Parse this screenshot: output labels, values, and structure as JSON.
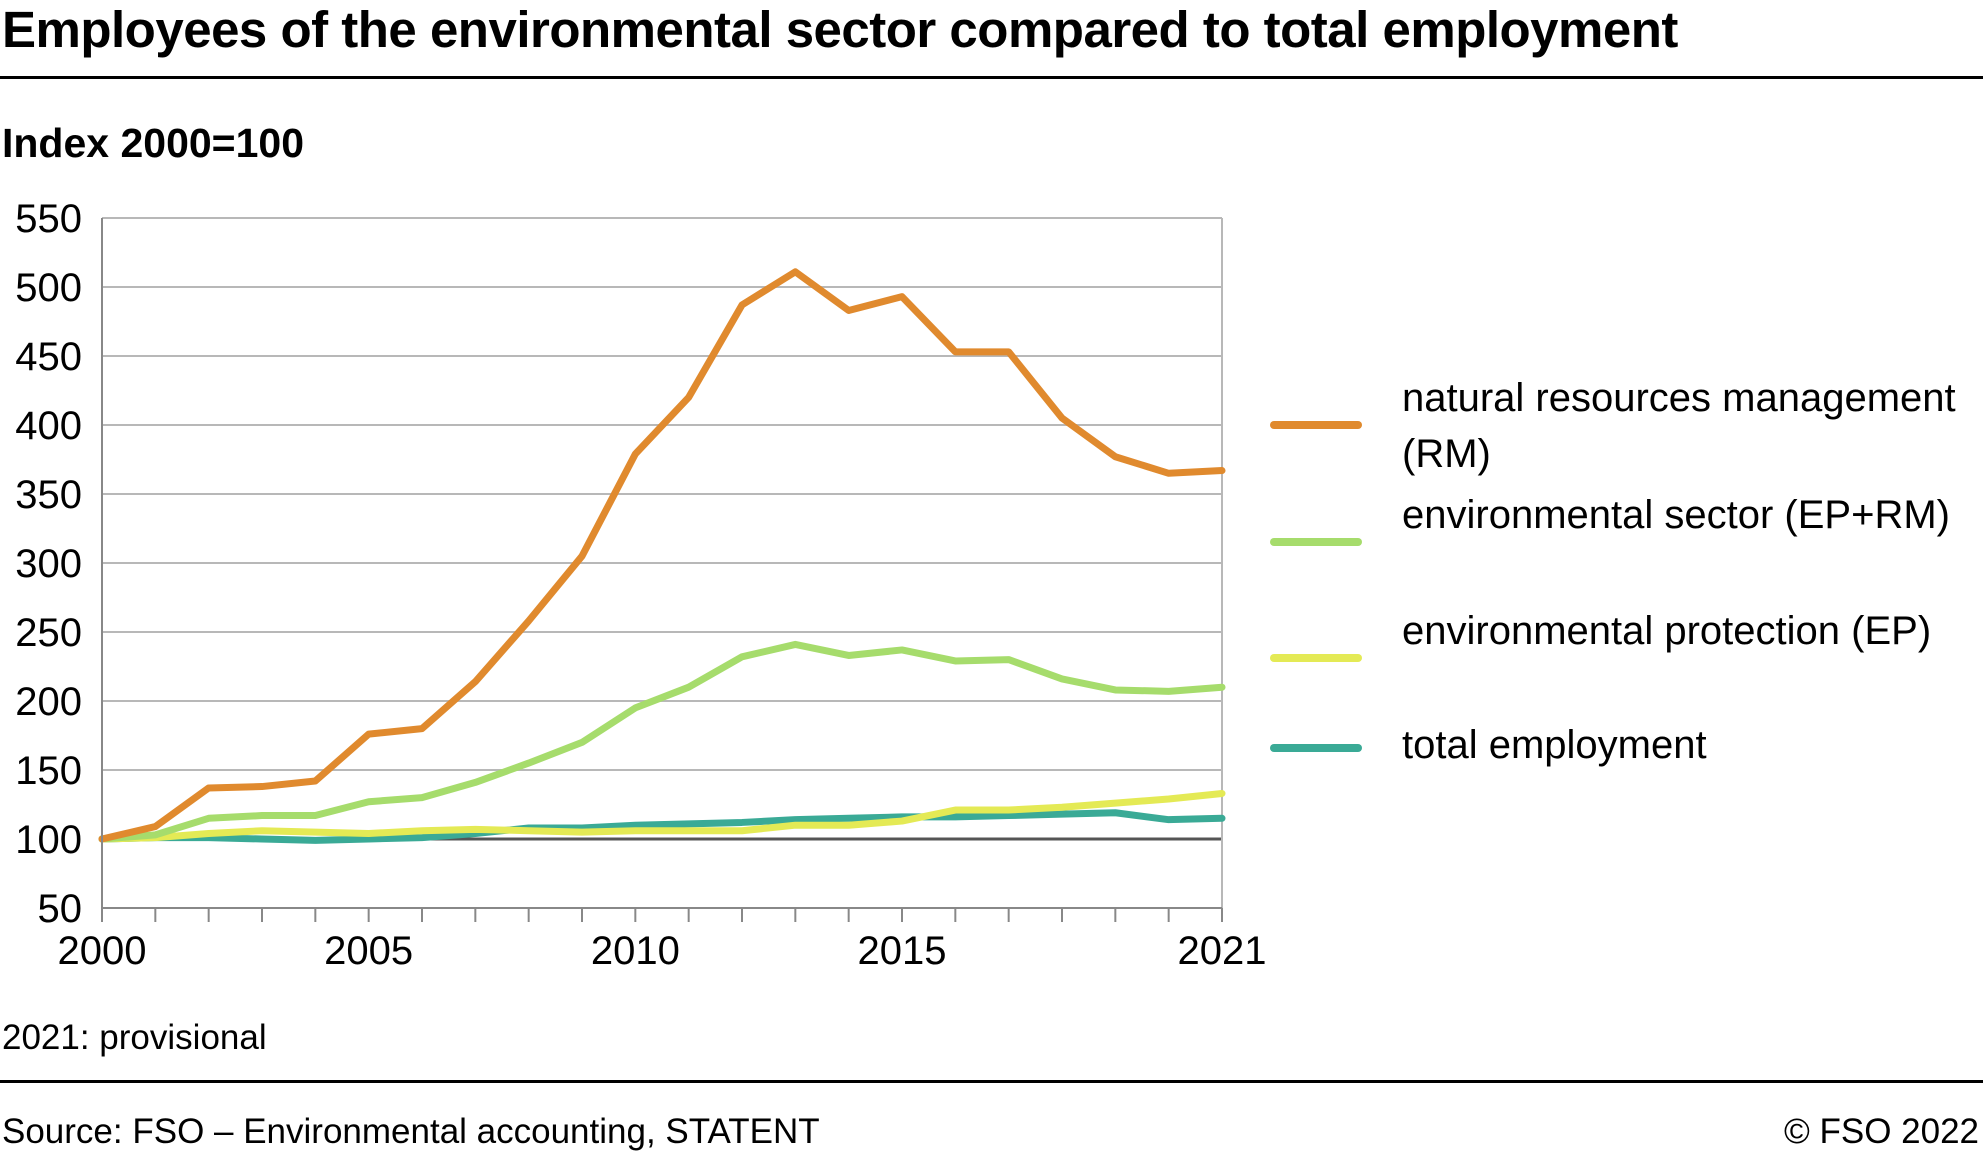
{
  "header": {
    "title": "Employees of the environmental sector compared to total employment",
    "subtitle": "Index 2000=100"
  },
  "footer": {
    "note": "2021: provisional",
    "source": "Source: FSO – Environmental accounting, STATENT",
    "copyright": "© FSO 2022"
  },
  "chart_data": {
    "type": "line",
    "title": "Employees of the environmental sector compared to total employment",
    "ylabel": "Index 2000=100",
    "xlabel": "",
    "x": [
      2000,
      2001,
      2002,
      2003,
      2004,
      2005,
      2006,
      2007,
      2008,
      2009,
      2010,
      2011,
      2012,
      2013,
      2014,
      2015,
      2016,
      2017,
      2018,
      2019,
      2020,
      2021
    ],
    "xlim": [
      2000,
      2021
    ],
    "ylim": [
      50,
      550
    ],
    "yticks": [
      50,
      100,
      150,
      200,
      250,
      300,
      350,
      400,
      450,
      500,
      550
    ],
    "xtick_labels": [
      "2000",
      "2005",
      "2010",
      "2015",
      "2021"
    ],
    "ytick_labels": [
      "50",
      "100",
      "150",
      "200",
      "250",
      "300",
      "350",
      "400",
      "450",
      "500",
      "550"
    ],
    "grid": true,
    "legend_position": "right",
    "series": [
      {
        "name": "natural resources management (RM)",
        "color": "#e08a2e",
        "values": [
          100,
          109,
          137,
          138,
          142,
          176,
          180,
          214,
          258,
          305,
          379,
          420,
          487,
          511,
          483,
          493,
          453,
          453,
          405,
          377,
          365,
          367
        ]
      },
      {
        "name": "environmental sector (EP+RM)",
        "color": "#a6dc6c",
        "values": [
          100,
          103,
          115,
          117,
          117,
          127,
          130,
          141,
          155,
          170,
          195,
          210,
          232,
          241,
          233,
          237,
          229,
          230,
          216,
          208,
          207,
          210
        ]
      },
      {
        "name": "environmental protection (EP)",
        "color": "#e4ea55",
        "values": [
          100,
          101,
          104,
          106,
          105,
          104,
          106,
          107,
          106,
          105,
          106,
          106,
          106,
          110,
          110,
          113,
          121,
          121,
          123,
          126,
          129,
          133
        ]
      },
      {
        "name": "total employment",
        "color": "#3aaa96",
        "values": [
          100,
          101,
          101,
          100,
          99,
          100,
          101,
          104,
          108,
          108,
          110,
          111,
          112,
          114,
          115,
          116,
          116,
          117,
          118,
          119,
          114,
          115
        ]
      }
    ]
  }
}
